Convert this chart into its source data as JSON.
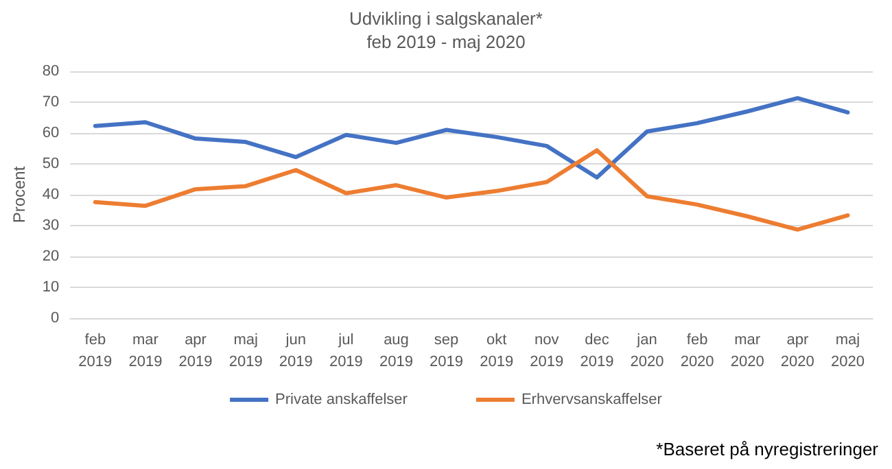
{
  "chart_data": {
    "type": "line",
    "title": "Udvikling i salgskanaler*",
    "subtitle": "feb 2019 - maj 2020",
    "ylabel": "Procent",
    "categories": [
      "feb 2019",
      "mar 2019",
      "apr 2019",
      "maj 2019",
      "jun 2019",
      "jul 2019",
      "aug 2019",
      "sep 2019",
      "okt 2019",
      "nov 2019",
      "dec 2019",
      "jan 2020",
      "feb 2020",
      "mar 2020",
      "apr 2020",
      "maj 2020"
    ],
    "series": [
      {
        "name": "Private anskaffelser",
        "color": "#4472c4",
        "values": [
          62.3,
          63.5,
          58.2,
          57.1,
          52.2,
          59.4,
          56.8,
          61,
          58.7,
          55.8,
          45.6,
          60.5,
          63.2,
          67,
          71.3,
          66.7
        ]
      },
      {
        "name": "Erhvervsanskaffelser",
        "color": "#ed7d31",
        "values": [
          37.6,
          36.4,
          41.8,
          42.8,
          48,
          40.5,
          43.1,
          39.1,
          41.2,
          44.1,
          54.4,
          39.5,
          36.8,
          33,
          28.7,
          33.3
        ]
      }
    ],
    "ylim": [
      0,
      80
    ],
    "yticks": [
      0,
      10,
      20,
      30,
      40,
      50,
      60,
      70,
      80
    ],
    "grid": "y",
    "legend": "bottom",
    "marker": "none",
    "line_style": "solid",
    "annotations": [
      "*Baseret på nyregistreringer"
    ]
  }
}
